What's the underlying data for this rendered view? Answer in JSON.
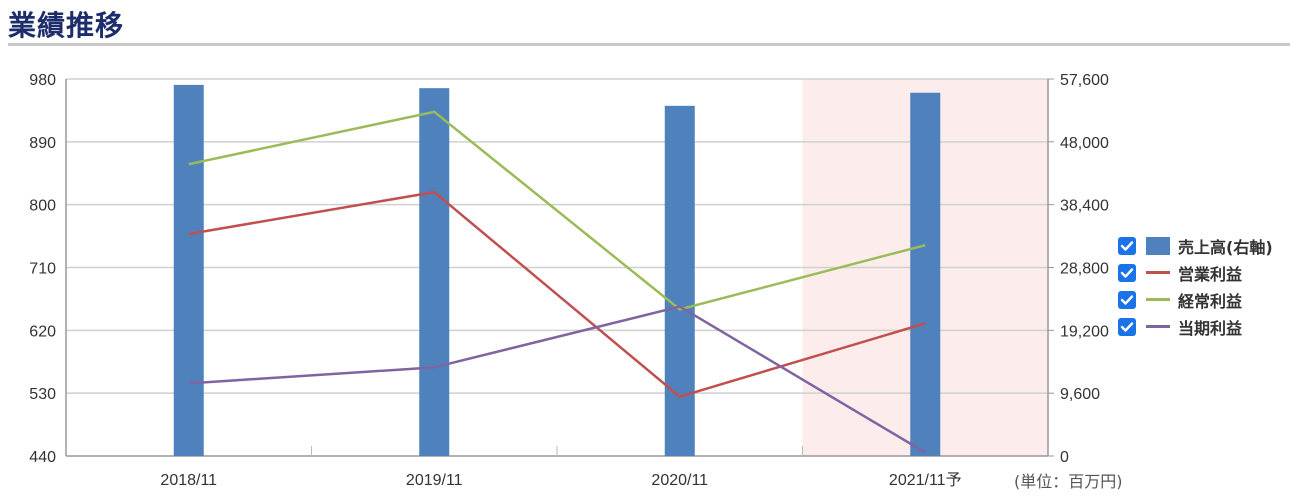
{
  "header": {
    "title": "業績推移"
  },
  "unit_note": "(単位：百万円)",
  "legend": [
    {
      "label": "売上高(右軸)",
      "color": "#4f81bd",
      "kind": "bar",
      "checked": true
    },
    {
      "label": "営業利益",
      "color": "#c0504d",
      "kind": "line",
      "checked": true
    },
    {
      "label": "経常利益",
      "color": "#9bbb59",
      "kind": "line",
      "checked": true
    },
    {
      "label": "当期利益",
      "color": "#8064a2",
      "kind": "line",
      "checked": true
    }
  ],
  "chart_data": {
    "type": "bar",
    "categories": [
      "2018/11",
      "2019/11",
      "2020/11",
      "2021/11予"
    ],
    "forecast_category": "2021/11予",
    "y_left": {
      "ticks": [
        980,
        890,
        800,
        710,
        620,
        530,
        440
      ],
      "min": 440,
      "max": 980
    },
    "y_right": {
      "ticks": [
        "57,600",
        "48,000",
        "38,400",
        "28,800",
        "19,200",
        "9,600",
        "0"
      ],
      "min": 0,
      "max": 57600
    },
    "grid": true,
    "legend_position": "right",
    "series": [
      {
        "name": "売上高(右軸)",
        "type": "bar",
        "axis": "right",
        "color": "#4f81bd",
        "values": [
          56700,
          56200,
          53500,
          55500
        ]
      },
      {
        "name": "営業利益",
        "type": "line",
        "axis": "left",
        "color": "#c0504d",
        "values": [
          758,
          818,
          525,
          630
        ]
      },
      {
        "name": "経常利益",
        "type": "line",
        "axis": "left",
        "color": "#9bbb59",
        "values": [
          858,
          933,
          650,
          742
        ]
      },
      {
        "name": "当期利益",
        "type": "line",
        "axis": "left",
        "color": "#8064a2",
        "values": [
          544,
          567,
          654,
          445
        ]
      }
    ]
  }
}
